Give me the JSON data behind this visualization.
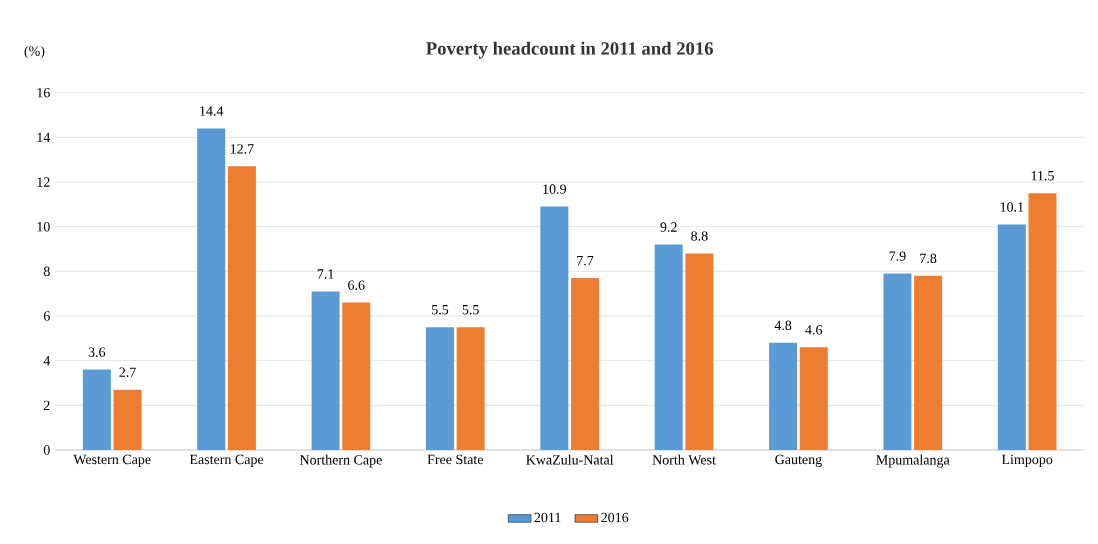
{
  "chart_data": {
    "type": "bar",
    "title": "Poverty headcount in 2011 and 2016",
    "ylabel": "(%)",
    "categories": [
      "Western Cape",
      "Eastern Cape",
      "Northern Cape",
      "Free State",
      "KwaZulu-Natal",
      "North West",
      "Gauteng",
      "Mpumalanga",
      "Limpopo"
    ],
    "series": [
      {
        "name": "2011",
        "color": "#5b9bd5",
        "values": [
          3.6,
          14.4,
          7.1,
          5.5,
          10.9,
          9.2,
          4.8,
          7.9,
          10.1
        ]
      },
      {
        "name": "2016",
        "color": "#ed7d31",
        "values": [
          2.7,
          12.7,
          6.6,
          5.5,
          7.7,
          8.8,
          4.6,
          7.8,
          11.5
        ]
      }
    ],
    "ylim": [
      0,
      16
    ],
    "yticks": [
      0,
      2,
      4,
      6,
      8,
      10,
      12,
      14,
      16
    ],
    "grid": "y",
    "legend": "bottom",
    "data_labels": true
  }
}
